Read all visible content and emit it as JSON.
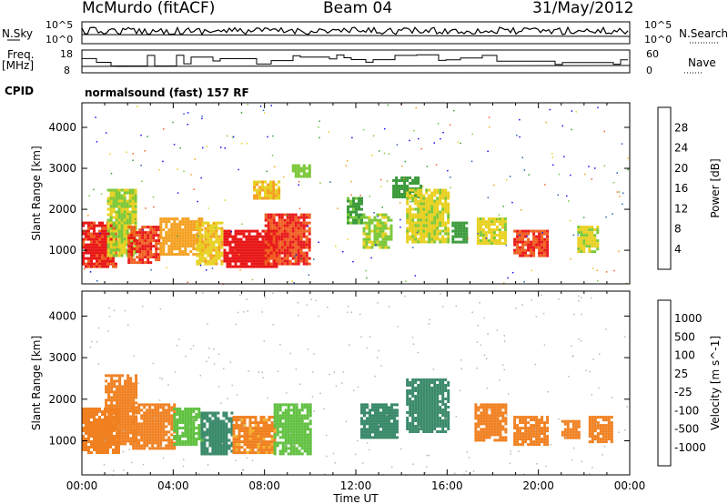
{
  "header": {
    "station": "McMurdo (fitACF)",
    "beam": "Beam 04",
    "date": "31/May/2012"
  },
  "params": {
    "nsky_label": "N.Sky",
    "nsearch_label": "N.Search",
    "freq_label_1": "Freq.",
    "freq_label_2": "[MHz]",
    "nave_label": "Nave",
    "cpid_label": "CPID",
    "cpid_value": "normalsound (fast) 157 RF",
    "noise_ticks_left": [
      "10^5",
      "10^0"
    ],
    "noise_ticks_right": [
      "10^5",
      "10^0"
    ],
    "freq_ticks": [
      "18",
      "8"
    ],
    "nave_ticks": [
      "60",
      "0"
    ]
  },
  "chart_data": [
    {
      "type": "heatmap",
      "title": "",
      "xlabel": "Time UT",
      "ylabel": "Slant Range [km]",
      "xlim": [
        0,
        24
      ],
      "ylim": [
        180,
        4600
      ],
      "x_ticks": [
        "00:00",
        "04:00",
        "08:00",
        "12:00",
        "16:00",
        "20:00",
        "00:00"
      ],
      "y_ticks": [
        "1000",
        "2000",
        "3000",
        "4000"
      ],
      "colorbar": {
        "label": "Power [dB]",
        "ticks": [
          "4",
          "8",
          "12",
          "16",
          "20",
          "24",
          "28"
        ],
        "colors": [
          "#1010ee",
          "#2a5fb8",
          "#3a9a3a",
          "#7cc83a",
          "#e8d020",
          "#f4a020",
          "#f06020",
          "#e81818"
        ]
      },
      "patches": [
        {
          "t": [
            0.0,
            1.5
          ],
          "r": [
            600,
            1700
          ],
          "level": 27
        },
        {
          "t": [
            1.1,
            2.4
          ],
          "r": [
            900,
            2500
          ],
          "level": 14
        },
        {
          "t": [
            2.0,
            3.4
          ],
          "r": [
            700,
            1600
          ],
          "level": 26
        },
        {
          "t": [
            3.4,
            5.2
          ],
          "r": [
            900,
            1800
          ],
          "level": 20
        },
        {
          "t": [
            5.0,
            6.1
          ],
          "r": [
            700,
            1700
          ],
          "level": 17
        },
        {
          "t": [
            6.2,
            8.5
          ],
          "r": [
            600,
            1500
          ],
          "level": 28
        },
        {
          "t": [
            8.0,
            10.0
          ],
          "r": [
            700,
            1900
          ],
          "level": 26
        },
        {
          "t": [
            7.5,
            8.6
          ],
          "r": [
            2300,
            2700
          ],
          "level": 18
        },
        {
          "t": [
            9.2,
            10.0
          ],
          "r": [
            2800,
            3100
          ],
          "level": 12
        },
        {
          "t": [
            11.6,
            12.2
          ],
          "r": [
            1700,
            2300
          ],
          "level": 9
        },
        {
          "t": [
            12.3,
            13.6
          ],
          "r": [
            1100,
            1900
          ],
          "level": 13
        },
        {
          "t": [
            13.6,
            14.8
          ],
          "r": [
            2300,
            2800
          ],
          "level": 8
        },
        {
          "t": [
            14.2,
            16.0
          ],
          "r": [
            1200,
            2500
          ],
          "level": 15
        },
        {
          "t": [
            16.2,
            16.8
          ],
          "r": [
            1200,
            1700
          ],
          "level": 8
        },
        {
          "t": [
            17.3,
            18.5
          ],
          "r": [
            1200,
            1800
          ],
          "level": 15
        },
        {
          "t": [
            18.9,
            20.4
          ],
          "r": [
            900,
            1500
          ],
          "level": 26
        },
        {
          "t": [
            21.7,
            22.6
          ],
          "r": [
            1000,
            1600
          ],
          "level": 15
        }
      ]
    },
    {
      "type": "heatmap",
      "title": "",
      "xlabel": "Time UT",
      "ylabel": "Slant Range [km]",
      "xlim": [
        0,
        24
      ],
      "ylim": [
        180,
        4600
      ],
      "x_ticks": [
        "00:00",
        "04:00",
        "08:00",
        "12:00",
        "16:00",
        "20:00",
        "00:00"
      ],
      "y_ticks": [
        "1000",
        "2000",
        "3000",
        "4000"
      ],
      "colorbar": {
        "label": "Velocity [m s^-1]",
        "ticks": [
          "1000",
          "500",
          "100",
          "25",
          "-25",
          "-100",
          "-500",
          "-1000"
        ],
        "colors": [
          "#1030c0",
          "#2a6a9a",
          "#3a8a6a",
          "#60c040",
          "#b8b8b8",
          "#f4b030",
          "#f08020",
          "#f05018",
          "#e81010"
        ]
      },
      "patches": [
        {
          "t": [
            0.0,
            1.6
          ],
          "r": [
            700,
            1800
          ],
          "level": -150
        },
        {
          "t": [
            1.0,
            2.4
          ],
          "r": [
            900,
            2600
          ],
          "level": -200
        },
        {
          "t": [
            2.2,
            4.0
          ],
          "r": [
            800,
            1900
          ],
          "level": -300
        },
        {
          "t": [
            4.0,
            5.2
          ],
          "r": [
            900,
            1800
          ],
          "level": 60
        },
        {
          "t": [
            5.2,
            6.6
          ],
          "r": [
            700,
            1700
          ],
          "level": 150
        },
        {
          "t": [
            6.6,
            8.4
          ],
          "r": [
            700,
            1600
          ],
          "level": -120
        },
        {
          "t": [
            8.4,
            10.0
          ],
          "r": [
            700,
            1900
          ],
          "level": 40
        },
        {
          "t": [
            12.2,
            13.8
          ],
          "r": [
            1100,
            1900
          ],
          "level": 200
        },
        {
          "t": [
            14.2,
            16.0
          ],
          "r": [
            1200,
            2500
          ],
          "level": 150
        },
        {
          "t": [
            17.2,
            18.6
          ],
          "r": [
            1000,
            1900
          ],
          "level": -300
        },
        {
          "t": [
            18.9,
            20.4
          ],
          "r": [
            900,
            1600
          ],
          "level": -300
        },
        {
          "t": [
            21.0,
            21.8
          ],
          "r": [
            1100,
            1500
          ],
          "level": -250
        },
        {
          "t": [
            22.2,
            23.2
          ],
          "r": [
            1000,
            1600
          ],
          "level": -350
        }
      ]
    }
  ]
}
